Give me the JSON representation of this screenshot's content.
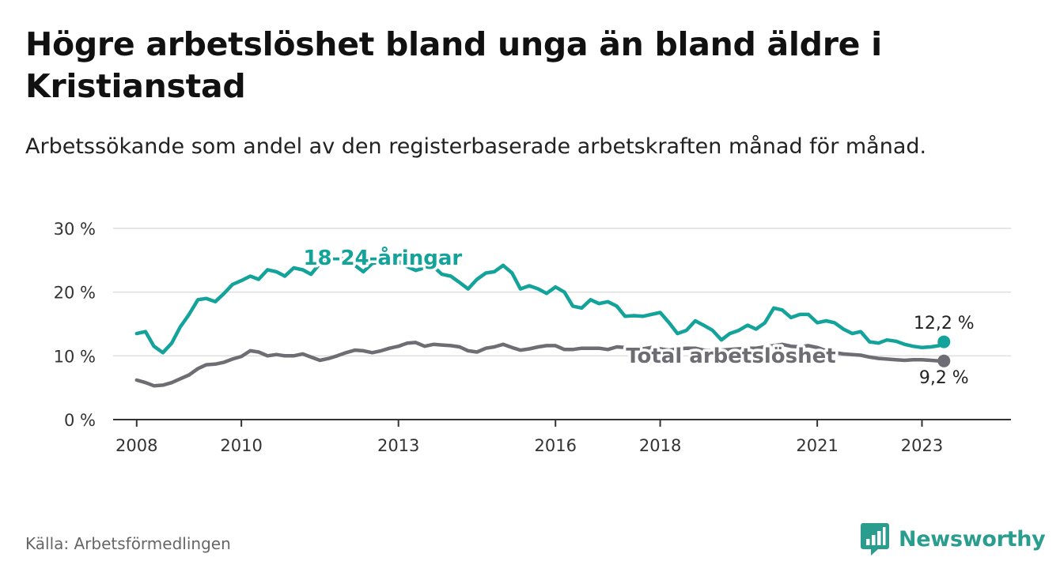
{
  "title": "Högre arbetslöshet bland unga än bland äldre i Kristianstad",
  "subtitle": "Arbetssökande som andel av den registerbaserade arbetskraften månad för månad.",
  "source": "Källa: Arbetsförmedlingen",
  "brand": "Newsworthy",
  "colors": {
    "youth": "#13a39a",
    "total": "#6e6d73",
    "grid": "#dddddd",
    "axis": "#333333"
  },
  "chart_data": {
    "type": "line",
    "title": "Högre arbetslöshet bland unga än bland äldre i Kristianstad",
    "ylabel": "",
    "xlabel": "",
    "ylim": [
      0,
      30
    ],
    "xlim": [
      2007.55,
      2024.7
    ],
    "yticks": [
      0,
      10,
      20,
      30
    ],
    "ytick_labels": [
      "0 %",
      "10 %",
      "20 %",
      "30 %"
    ],
    "xticks": [
      2008,
      2010,
      2013,
      2016,
      2018,
      2021,
      2023
    ],
    "xtick_labels": [
      "2008",
      "2010",
      "2013",
      "2016",
      "2018",
      "2021",
      "2023"
    ],
    "grid": true,
    "series": [
      {
        "name": "18-24-åringar",
        "label": "18-24-åringar",
        "end_label": "12,2 %",
        "color": "#13a39a",
        "x": [
          2008.0,
          2008.17,
          2008.33,
          2008.5,
          2008.67,
          2008.83,
          2009.0,
          2009.17,
          2009.33,
          2009.5,
          2009.67,
          2009.83,
          2010.0,
          2010.17,
          2010.33,
          2010.5,
          2010.67,
          2010.83,
          2011.0,
          2011.17,
          2011.33,
          2011.5,
          2011.67,
          2011.83,
          2012.0,
          2012.17,
          2012.33,
          2012.5,
          2012.67,
          2012.83,
          2013.0,
          2013.17,
          2013.33,
          2013.5,
          2013.67,
          2013.83,
          2014.0,
          2014.17,
          2014.33,
          2014.5,
          2014.67,
          2014.83,
          2015.0,
          2015.17,
          2015.33,
          2015.5,
          2015.67,
          2015.83,
          2016.0,
          2016.17,
          2016.33,
          2016.5,
          2016.67,
          2016.83,
          2017.0,
          2017.17,
          2017.33,
          2017.5,
          2017.67,
          2017.83,
          2018.0,
          2018.17,
          2018.33,
          2018.5,
          2018.67,
          2018.83,
          2019.0,
          2019.17,
          2019.33,
          2019.5,
          2019.67,
          2019.83,
          2020.0,
          2020.17,
          2020.33,
          2020.5,
          2020.67,
          2020.83,
          2021.0,
          2021.17,
          2021.33,
          2021.5,
          2021.67,
          2021.83,
          2022.0,
          2022.17,
          2022.33,
          2022.5,
          2022.67,
          2022.83,
          2023.0,
          2023.17,
          2023.33,
          2023.42
        ],
        "values": [
          13.5,
          13.8,
          11.5,
          10.5,
          12.0,
          14.5,
          16.5,
          18.8,
          19.0,
          18.5,
          19.8,
          21.2,
          21.8,
          22.5,
          22.0,
          23.5,
          23.2,
          22.5,
          23.8,
          23.5,
          22.8,
          24.5,
          25.2,
          25.5,
          25.0,
          24.2,
          23.2,
          24.5,
          24.8,
          24.2,
          24.8,
          24.0,
          23.4,
          23.8,
          24.0,
          22.8,
          22.5,
          21.5,
          20.5,
          22.0,
          23.0,
          23.2,
          24.2,
          23.0,
          20.5,
          21.0,
          20.5,
          19.8,
          20.8,
          20.0,
          17.8,
          17.5,
          18.8,
          18.2,
          18.5,
          17.8,
          16.2,
          16.3,
          16.2,
          16.5,
          16.8,
          15.2,
          13.5,
          14.0,
          15.5,
          14.8,
          14.0,
          12.5,
          13.5,
          14.0,
          14.8,
          14.2,
          15.2,
          17.5,
          17.2,
          16.0,
          16.5,
          16.5,
          15.2,
          15.5,
          15.2,
          14.2,
          13.5,
          13.8,
          12.2,
          12.0,
          12.5,
          12.3,
          11.8,
          11.5,
          11.3,
          11.4,
          11.6,
          12.2
        ]
      },
      {
        "name": "Total arbetslöshet",
        "label": "Total arbetslöshet",
        "end_label": "9,2 %",
        "color": "#6e6d73",
        "x": [
          2008.0,
          2008.17,
          2008.33,
          2008.5,
          2008.67,
          2008.83,
          2009.0,
          2009.17,
          2009.33,
          2009.5,
          2009.67,
          2009.83,
          2010.0,
          2010.17,
          2010.33,
          2010.5,
          2010.67,
          2010.83,
          2011.0,
          2011.17,
          2011.33,
          2011.5,
          2011.67,
          2011.83,
          2012.0,
          2012.17,
          2012.33,
          2012.5,
          2012.67,
          2012.83,
          2013.0,
          2013.17,
          2013.33,
          2013.5,
          2013.67,
          2013.83,
          2014.0,
          2014.17,
          2014.33,
          2014.5,
          2014.67,
          2014.83,
          2015.0,
          2015.17,
          2015.33,
          2015.5,
          2015.67,
          2015.83,
          2016.0,
          2016.17,
          2016.33,
          2016.5,
          2016.67,
          2016.83,
          2017.0,
          2017.17,
          2017.33,
          2017.5,
          2017.67,
          2017.83,
          2018.0,
          2018.17,
          2018.33,
          2018.5,
          2018.67,
          2018.83,
          2019.0,
          2019.17,
          2019.33,
          2019.5,
          2019.67,
          2019.83,
          2020.0,
          2020.17,
          2020.33,
          2020.5,
          2020.67,
          2020.83,
          2021.0,
          2021.17,
          2021.33,
          2021.5,
          2021.67,
          2021.83,
          2022.0,
          2022.17,
          2022.33,
          2022.5,
          2022.67,
          2022.83,
          2023.0,
          2023.17,
          2023.33,
          2023.42
        ],
        "values": [
          6.2,
          5.8,
          5.3,
          5.4,
          5.8,
          6.4,
          7.0,
          8.0,
          8.6,
          8.7,
          9.0,
          9.5,
          9.9,
          10.8,
          10.6,
          10.0,
          10.2,
          10.0,
          10.0,
          10.3,
          9.8,
          9.3,
          9.6,
          10.0,
          10.5,
          10.9,
          10.8,
          10.5,
          10.8,
          11.2,
          11.5,
          12.0,
          12.1,
          11.5,
          11.8,
          11.7,
          11.6,
          11.4,
          10.8,
          10.6,
          11.2,
          11.4,
          11.8,
          11.3,
          10.9,
          11.1,
          11.4,
          11.6,
          11.6,
          11.0,
          11.0,
          11.2,
          11.2,
          11.2,
          11.0,
          11.4,
          11.3,
          11.2,
          11.1,
          11.3,
          11.1,
          10.9,
          11.1,
          11.2,
          11.2,
          10.9,
          10.8,
          10.9,
          11.0,
          11.1,
          11.2,
          11.2,
          11.4,
          11.6,
          11.8,
          11.5,
          11.4,
          11.6,
          11.3,
          10.8,
          10.5,
          10.3,
          10.2,
          10.1,
          9.8,
          9.6,
          9.5,
          9.4,
          9.3,
          9.4,
          9.4,
          9.3,
          9.2,
          9.2
        ]
      }
    ]
  }
}
